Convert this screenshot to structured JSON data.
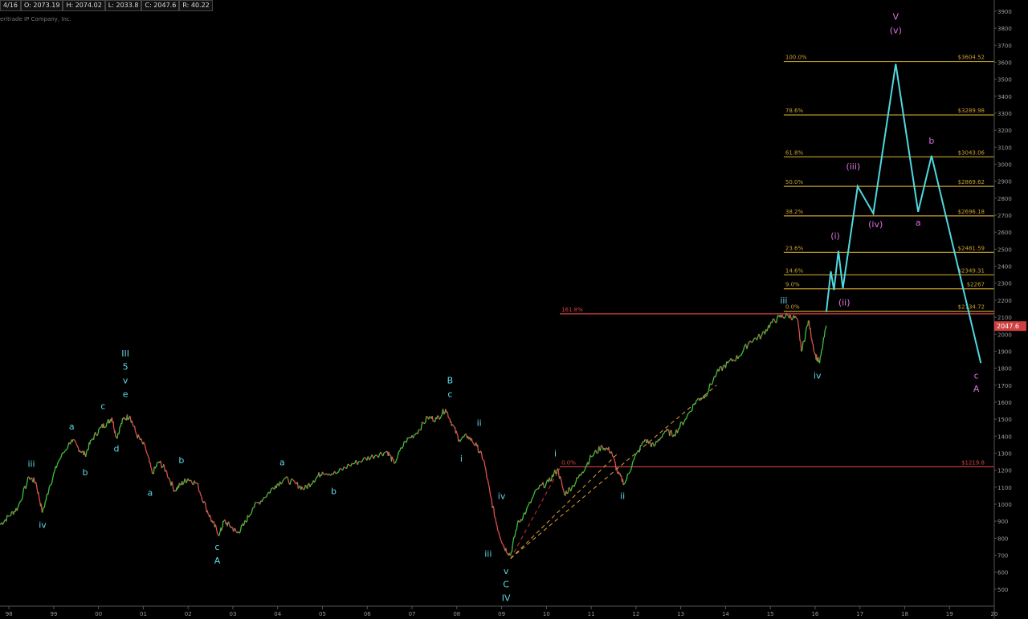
{
  "header": {
    "date_fragment": "4/16",
    "open": "O: 2073.19",
    "high": "H: 2074.02",
    "low": "L: 2033.8",
    "close": "C: 2047.6",
    "change": "R: 40.22",
    "copyright": "eritrade IP Company, Inc."
  },
  "chart_data": {
    "type": "line",
    "x_axis": {
      "range": [
        1997.8,
        2020
      ],
      "ticks": [
        {
          "label": "98",
          "x": 1998
        },
        {
          "label": "99",
          "x": 1999
        },
        {
          "label": "00",
          "x": 2000
        },
        {
          "label": "01",
          "x": 2001
        },
        {
          "label": "02",
          "x": 2002
        },
        {
          "label": "03",
          "x": 2003
        },
        {
          "label": "04",
          "x": 2004
        },
        {
          "label": "05",
          "x": 2005
        },
        {
          "label": "06",
          "x": 2006
        },
        {
          "label": "07",
          "x": 2007
        },
        {
          "label": "08",
          "x": 2008
        },
        {
          "label": "09",
          "x": 2009
        },
        {
          "label": "10",
          "x": 2010
        },
        {
          "label": "11",
          "x": 2011
        },
        {
          "label": "12",
          "x": 2012
        },
        {
          "label": "13",
          "x": 2013
        },
        {
          "label": "14",
          "x": 2014
        },
        {
          "label": "15",
          "x": 2015
        },
        {
          "label": "16",
          "x": 2016
        },
        {
          "label": "17",
          "x": 2017
        },
        {
          "label": "18",
          "x": 2018
        },
        {
          "label": "19",
          "x": 2019
        },
        {
          "label": "20",
          "x": 2020
        }
      ]
    },
    "y_axis": {
      "range": [
        400,
        3900
      ],
      "ticks": [
        "500",
        "600",
        "700",
        "800",
        "900",
        "1000",
        "1100",
        "1200",
        "1300",
        "1400",
        "1500",
        "1600",
        "1700",
        "1800",
        "1900",
        "2000",
        "2100",
        "2200",
        "2300",
        "2400",
        "2500",
        "2600",
        "2700",
        "2800",
        "2900",
        "3000",
        "3100",
        "3200",
        "3300",
        "3400",
        "3500",
        "3600",
        "3700",
        "3800",
        "3900"
      ]
    },
    "last_price": {
      "value": 2047.6,
      "label": "2047.6"
    },
    "price_series": [
      [
        1997.8,
        880
      ],
      [
        1998.0,
        930
      ],
      [
        1998.2,
        980
      ],
      [
        1998.45,
        1160
      ],
      [
        1998.6,
        1130
      ],
      [
        1998.75,
        950
      ],
      [
        1998.9,
        1100
      ],
      [
        1999.1,
        1250
      ],
      [
        1999.4,
        1380
      ],
      [
        1999.55,
        1330
      ],
      [
        1999.7,
        1290
      ],
      [
        1999.85,
        1380
      ],
      [
        2000.05,
        1450
      ],
      [
        2000.2,
        1480
      ],
      [
        2000.3,
        1510
      ],
      [
        2000.4,
        1390
      ],
      [
        2000.55,
        1500
      ],
      [
        2000.7,
        1520
      ],
      [
        2000.85,
        1410
      ],
      [
        2001.05,
        1330
      ],
      [
        2001.2,
        1180
      ],
      [
        2001.35,
        1250
      ],
      [
        2001.5,
        1200
      ],
      [
        2001.7,
        1080
      ],
      [
        2001.85,
        1120
      ],
      [
        2002.0,
        1150
      ],
      [
        2002.2,
        1120
      ],
      [
        2002.4,
        980
      ],
      [
        2002.55,
        890
      ],
      [
        2002.7,
        820
      ],
      [
        2002.8,
        900
      ],
      [
        2002.95,
        870
      ],
      [
        2003.1,
        830
      ],
      [
        2003.25,
        880
      ],
      [
        2003.45,
        980
      ],
      [
        2003.7,
        1040
      ],
      [
        2003.95,
        1110
      ],
      [
        2004.15,
        1150
      ],
      [
        2004.4,
        1120
      ],
      [
        2004.6,
        1090
      ],
      [
        2004.8,
        1140
      ],
      [
        2005.0,
        1190
      ],
      [
        2005.3,
        1180
      ],
      [
        2005.6,
        1230
      ],
      [
        2005.9,
        1260
      ],
      [
        2006.2,
        1290
      ],
      [
        2006.45,
        1310
      ],
      [
        2006.6,
        1240
      ],
      [
        2006.85,
        1370
      ],
      [
        2007.1,
        1420
      ],
      [
        2007.35,
        1510
      ],
      [
        2007.55,
        1500
      ],
      [
        2007.75,
        1560
      ],
      [
        2007.9,
        1470
      ],
      [
        2008.05,
        1380
      ],
      [
        2008.25,
        1400
      ],
      [
        2008.45,
        1340
      ],
      [
        2008.6,
        1260
      ],
      [
        2008.75,
        1050
      ],
      [
        2008.9,
        870
      ],
      [
        2009.05,
        750
      ],
      [
        2009.2,
        700
      ],
      [
        2009.35,
        880
      ],
      [
        2009.55,
        960
      ],
      [
        2009.8,
        1090
      ],
      [
        2010.05,
        1130
      ],
      [
        2010.25,
        1210
      ],
      [
        2010.4,
        1060
      ],
      [
        2010.6,
        1110
      ],
      [
        2010.8,
        1190
      ],
      [
        2011.0,
        1280
      ],
      [
        2011.25,
        1340
      ],
      [
        2011.45,
        1310
      ],
      [
        2011.6,
        1180
      ],
      [
        2011.75,
        1120
      ],
      [
        2011.95,
        1260
      ],
      [
        2012.2,
        1380
      ],
      [
        2012.4,
        1340
      ],
      [
        2012.65,
        1430
      ],
      [
        2012.85,
        1410
      ],
      [
        2013.1,
        1500
      ],
      [
        2013.35,
        1610
      ],
      [
        2013.55,
        1640
      ],
      [
        2013.8,
        1770
      ],
      [
        2014.05,
        1830
      ],
      [
        2014.3,
        1870
      ],
      [
        2014.55,
        1960
      ],
      [
        2014.8,
        1990
      ],
      [
        2015.0,
        2060
      ],
      [
        2015.2,
        2100
      ],
      [
        2015.4,
        2110
      ],
      [
        2015.6,
        2090
      ],
      [
        2015.7,
        1900
      ],
      [
        2015.85,
        2080
      ],
      [
        2016.0,
        1880
      ],
      [
        2016.1,
        1830
      ],
      [
        2016.25,
        2050
      ]
    ],
    "projection_series": [
      [
        2016.25,
        2130
      ],
      [
        2016.35,
        2370
      ],
      [
        2016.42,
        2260
      ],
      [
        2016.52,
        2490
      ],
      [
        2016.62,
        2270
      ],
      [
        2016.95,
        2870
      ],
      [
        2017.3,
        2710
      ],
      [
        2017.8,
        3590
      ],
      [
        2018.3,
        2720
      ],
      [
        2018.6,
        3050
      ],
      [
        2019.7,
        1830
      ]
    ],
    "trend_lines": [
      {
        "from": [
          2009.2,
          680
        ],
        "to": [
          2010.3,
          1210
        ],
        "style": "dashed",
        "color": "#cc3333"
      },
      {
        "from": [
          2009.2,
          680
        ],
        "to": [
          2011.6,
          1300
        ],
        "style": "dashed",
        "color": "#e0a040"
      },
      {
        "from": [
          2009.2,
          680
        ],
        "to": [
          2013.8,
          1700
        ],
        "style": "dashed",
        "color": "#e0a040"
      }
    ],
    "fib_levels": [
      {
        "pct": "100.0%",
        "value": 3604.52,
        "price": "$3604.52"
      },
      {
        "pct": "78.6%",
        "value": 3289.98,
        "price": "$3289.98"
      },
      {
        "pct": "61.8%",
        "value": 3043.06,
        "price": "$3043.06"
      },
      {
        "pct": "50.0%",
        "value": 2869.62,
        "price": "$2869.62"
      },
      {
        "pct": "38.2%",
        "value": 2696.18,
        "price": "$2696.18"
      },
      {
        "pct": "23.6%",
        "value": 2481.59,
        "price": "$2481.59"
      },
      {
        "pct": "14.6%",
        "value": 2349.31,
        "price": "$2349.31"
      },
      {
        "pct": "9.0%",
        "value": 2267,
        "price": "$2267"
      },
      {
        "pct": "0.0%",
        "value": 2134.72,
        "price": "$2134.72"
      }
    ],
    "fib_x_range": [
      2015.3,
      2020
    ],
    "red_levels": [
      {
        "pct": "161.8%",
        "value": 2120,
        "price": "",
        "x_from": 2010.3,
        "x_to": 2020
      },
      {
        "pct": "0.0%",
        "value": 1219.8,
        "price": "$1219.8",
        "x_from": 2010.3,
        "x_to": 2020
      }
    ],
    "wave_labels": [
      {
        "text": "iii",
        "x": 1998.5,
        "y": 1220,
        "color": "cyan"
      },
      {
        "text": "iv",
        "x": 1998.75,
        "y": 860,
        "color": "cyan"
      },
      {
        "text": "a",
        "x": 1999.4,
        "y": 1440,
        "color": "cyan"
      },
      {
        "text": "b",
        "x": 1999.7,
        "y": 1170,
        "color": "cyan"
      },
      {
        "text": "c",
        "x": 2000.1,
        "y": 1560,
        "color": "cyan"
      },
      {
        "text": "d",
        "x": 2000.4,
        "y": 1310,
        "color": "cyan"
      },
      {
        "text": "III",
        "x": 2000.6,
        "y": 1870,
        "color": "cyan"
      },
      {
        "text": "5",
        "x": 2000.6,
        "y": 1790,
        "color": "cyan"
      },
      {
        "text": "v",
        "x": 2000.6,
        "y": 1710,
        "color": "cyan"
      },
      {
        "text": "e",
        "x": 2000.6,
        "y": 1630,
        "color": "cyan"
      },
      {
        "text": "a",
        "x": 2001.15,
        "y": 1050,
        "color": "cyan"
      },
      {
        "text": "b",
        "x": 2001.85,
        "y": 1240,
        "color": "cyan"
      },
      {
        "text": "c",
        "x": 2002.65,
        "y": 730,
        "color": "cyan"
      },
      {
        "text": "A",
        "x": 2002.65,
        "y": 650,
        "color": "cyan"
      },
      {
        "text": "a",
        "x": 2004.1,
        "y": 1230,
        "color": "cyan"
      },
      {
        "text": "b",
        "x": 2005.25,
        "y": 1060,
        "color": "cyan"
      },
      {
        "text": "B",
        "x": 2007.85,
        "y": 1710,
        "color": "cyan"
      },
      {
        "text": "c",
        "x": 2007.85,
        "y": 1630,
        "color": "cyan"
      },
      {
        "text": "ii",
        "x": 2008.5,
        "y": 1460,
        "color": "cyan"
      },
      {
        "text": "i",
        "x": 2008.1,
        "y": 1250,
        "color": "cyan"
      },
      {
        "text": "iv",
        "x": 2009.0,
        "y": 1030,
        "color": "cyan"
      },
      {
        "text": "iii",
        "x": 2008.7,
        "y": 690,
        "color": "cyan"
      },
      {
        "text": "v",
        "x": 2009.1,
        "y": 590,
        "color": "cyan"
      },
      {
        "text": "C",
        "x": 2009.1,
        "y": 510,
        "color": "cyan"
      },
      {
        "text": "IV",
        "x": 2009.1,
        "y": 430,
        "color": "cyan"
      },
      {
        "text": "i",
        "x": 2010.2,
        "y": 1280,
        "color": "cyan"
      },
      {
        "text": "ii",
        "x": 2011.7,
        "y": 1030,
        "color": "cyan"
      },
      {
        "text": "iii",
        "x": 2015.3,
        "y": 2180,
        "color": "cyan"
      },
      {
        "text": "iv",
        "x": 2016.05,
        "y": 1740,
        "color": "cyan"
      },
      {
        "text": "V",
        "x": 2017.8,
        "y": 3850,
        "color": "pink"
      },
      {
        "text": "(v)",
        "x": 2017.8,
        "y": 3770,
        "color": "pink"
      },
      {
        "text": "(iii)",
        "x": 2016.85,
        "y": 2970,
        "color": "pink"
      },
      {
        "text": "(iv)",
        "x": 2017.35,
        "y": 2630,
        "color": "pink"
      },
      {
        "text": "(i)",
        "x": 2016.45,
        "y": 2560,
        "color": "pink"
      },
      {
        "text": "(ii)",
        "x": 2016.65,
        "y": 2170,
        "color": "pink"
      },
      {
        "text": "a",
        "x": 2018.3,
        "y": 2640,
        "color": "pink"
      },
      {
        "text": "b",
        "x": 2018.6,
        "y": 3120,
        "color": "pink"
      },
      {
        "text": "c",
        "x": 2019.6,
        "y": 1740,
        "color": "pink"
      },
      {
        "text": "A",
        "x": 2019.6,
        "y": 1660,
        "color": "pink"
      }
    ]
  },
  "colors": {
    "background": "#000000",
    "price_up": "#3cc43c",
    "price_down": "#e05050",
    "projection": "#50d8e0",
    "fib": "#c8a030",
    "red_level": "#d04040",
    "wave_cyan": "#5ed8e8",
    "wave_pink": "#e070e0",
    "axis_text": "#9a9a9a",
    "last_price_bg": "#d04040"
  }
}
